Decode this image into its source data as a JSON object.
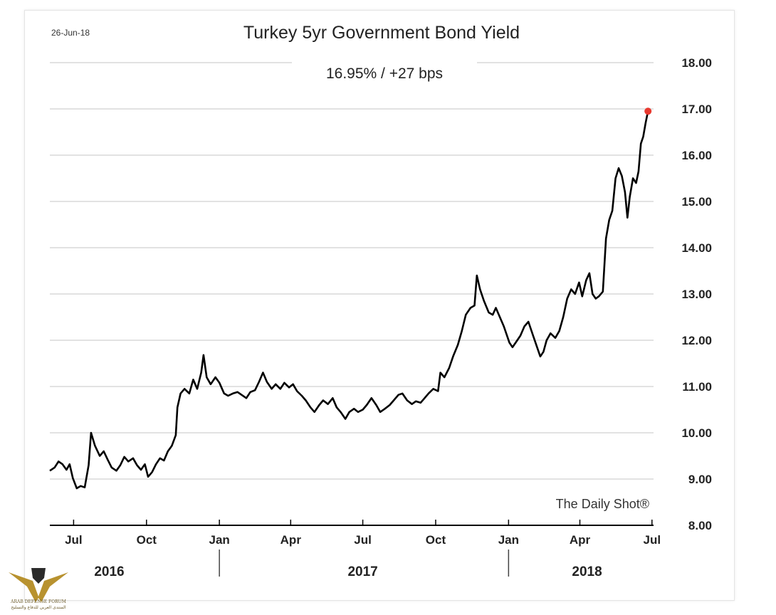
{
  "chart_data": {
    "type": "line",
    "date_label": "26-Jun-18",
    "title": "Turkey 5yr Government Bond Yield",
    "subtitle": "16.95%  /  +27 bps",
    "source": "The Daily Shot®",
    "ylim": [
      8,
      18
    ],
    "yticks": [
      "18.00",
      "17.00",
      "16.00",
      "15.00",
      "14.00",
      "13.00",
      "12.00",
      "11.00",
      "10.00",
      "9.00",
      "8.00"
    ],
    "xticks": [
      {
        "label": "Jul",
        "date": "2016-07-01"
      },
      {
        "label": "Oct",
        "date": "2016-10-01"
      },
      {
        "label": "Jan",
        "date": "2017-01-01"
      },
      {
        "label": "Apr",
        "date": "2017-04-01"
      },
      {
        "label": "Jul",
        "date": "2017-07-01"
      },
      {
        "label": "Oct",
        "date": "2017-10-01"
      },
      {
        "label": "Jan",
        "date": "2018-01-01"
      },
      {
        "label": "Apr",
        "date": "2018-04-01"
      },
      {
        "label": "Jul",
        "date": "2018-07-01"
      }
    ],
    "years": [
      {
        "label": "2016",
        "date": "2016-08-15"
      },
      {
        "label": "2017",
        "date": "2017-07-01"
      },
      {
        "label": "2018",
        "date": "2018-04-10"
      }
    ],
    "year_dividers": [
      "2017-01-01",
      "2018-01-01"
    ],
    "grid": true,
    "last_point": {
      "date": "2018-06-26",
      "value": 16.95,
      "color": "#e8392f"
    },
    "line_color": "#000000",
    "series": [
      {
        "values": [
          [
            "2016-06-01",
            9.18
          ],
          [
            "2016-06-07",
            9.25
          ],
          [
            "2016-06-12",
            9.38
          ],
          [
            "2016-06-17",
            9.32
          ],
          [
            "2016-06-22",
            9.2
          ],
          [
            "2016-06-26",
            9.32
          ],
          [
            "2016-06-30",
            9.02
          ],
          [
            "2016-07-05",
            8.8
          ],
          [
            "2016-07-10",
            8.85
          ],
          [
            "2016-07-15",
            8.82
          ],
          [
            "2016-07-20",
            9.3
          ],
          [
            "2016-07-23",
            10.0
          ],
          [
            "2016-07-28",
            9.72
          ],
          [
            "2016-08-03",
            9.5
          ],
          [
            "2016-08-08",
            9.6
          ],
          [
            "2016-08-13",
            9.42
          ],
          [
            "2016-08-18",
            9.25
          ],
          [
            "2016-08-24",
            9.18
          ],
          [
            "2016-08-29",
            9.3
          ],
          [
            "2016-09-03",
            9.48
          ],
          [
            "2016-09-08",
            9.38
          ],
          [
            "2016-09-14",
            9.45
          ],
          [
            "2016-09-19",
            9.3
          ],
          [
            "2016-09-24",
            9.2
          ],
          [
            "2016-09-29",
            9.32
          ],
          [
            "2016-10-03",
            9.05
          ],
          [
            "2016-10-08",
            9.15
          ],
          [
            "2016-10-13",
            9.32
          ],
          [
            "2016-10-18",
            9.45
          ],
          [
            "2016-10-23",
            9.4
          ],
          [
            "2016-10-28",
            9.6
          ],
          [
            "2016-11-02",
            9.72
          ],
          [
            "2016-11-07",
            9.95
          ],
          [
            "2016-11-09",
            10.55
          ],
          [
            "2016-11-13",
            10.85
          ],
          [
            "2016-11-18",
            10.95
          ],
          [
            "2016-11-24",
            10.85
          ],
          [
            "2016-11-29",
            11.15
          ],
          [
            "2016-12-04",
            10.95
          ],
          [
            "2016-12-09",
            11.3
          ],
          [
            "2016-12-12",
            11.68
          ],
          [
            "2016-12-16",
            11.2
          ],
          [
            "2016-12-21",
            11.05
          ],
          [
            "2016-12-27",
            11.2
          ],
          [
            "2017-01-01",
            11.08
          ],
          [
            "2017-01-07",
            10.85
          ],
          [
            "2017-01-12",
            10.8
          ],
          [
            "2017-01-18",
            10.85
          ],
          [
            "2017-01-24",
            10.88
          ],
          [
            "2017-01-29",
            10.82
          ],
          [
            "2017-02-04",
            10.75
          ],
          [
            "2017-02-09",
            10.88
          ],
          [
            "2017-02-15",
            10.92
          ],
          [
            "2017-02-20",
            11.1
          ],
          [
            "2017-02-25",
            11.3
          ],
          [
            "2017-03-02",
            11.1
          ],
          [
            "2017-03-08",
            10.95
          ],
          [
            "2017-03-13",
            11.05
          ],
          [
            "2017-03-19",
            10.95
          ],
          [
            "2017-03-24",
            11.08
          ],
          [
            "2017-03-30",
            10.98
          ],
          [
            "2017-04-04",
            11.05
          ],
          [
            "2017-04-09",
            10.9
          ],
          [
            "2017-04-15",
            10.8
          ],
          [
            "2017-04-20",
            10.7
          ],
          [
            "2017-04-26",
            10.55
          ],
          [
            "2017-05-01",
            10.45
          ],
          [
            "2017-05-07",
            10.6
          ],
          [
            "2017-05-12",
            10.7
          ],
          [
            "2017-05-18",
            10.62
          ],
          [
            "2017-05-24",
            10.75
          ],
          [
            "2017-05-29",
            10.55
          ],
          [
            "2017-06-03",
            10.45
          ],
          [
            "2017-06-09",
            10.3
          ],
          [
            "2017-06-14",
            10.45
          ],
          [
            "2017-06-20",
            10.52
          ],
          [
            "2017-06-25",
            10.45
          ],
          [
            "2017-07-01",
            10.5
          ],
          [
            "2017-07-06",
            10.6
          ],
          [
            "2017-07-12",
            10.75
          ],
          [
            "2017-07-18",
            10.6
          ],
          [
            "2017-07-23",
            10.45
          ],
          [
            "2017-07-29",
            10.52
          ],
          [
            "2017-08-04",
            10.6
          ],
          [
            "2017-08-09",
            10.7
          ],
          [
            "2017-08-15",
            10.82
          ],
          [
            "2017-08-20",
            10.85
          ],
          [
            "2017-08-26",
            10.7
          ],
          [
            "2017-09-01",
            10.62
          ],
          [
            "2017-09-06",
            10.68
          ],
          [
            "2017-09-12",
            10.65
          ],
          [
            "2017-09-17",
            10.75
          ],
          [
            "2017-09-22",
            10.85
          ],
          [
            "2017-09-28",
            10.95
          ],
          [
            "2017-10-04",
            10.9
          ],
          [
            "2017-10-07",
            11.3
          ],
          [
            "2017-10-12",
            11.2
          ],
          [
            "2017-10-18",
            11.4
          ],
          [
            "2017-10-23",
            11.65
          ],
          [
            "2017-10-29",
            11.9
          ],
          [
            "2017-11-03",
            12.2
          ],
          [
            "2017-11-08",
            12.55
          ],
          [
            "2017-11-14",
            12.7
          ],
          [
            "2017-11-19",
            12.75
          ],
          [
            "2017-11-22",
            13.4
          ],
          [
            "2017-11-26",
            13.1
          ],
          [
            "2017-12-01",
            12.85
          ],
          [
            "2017-12-07",
            12.6
          ],
          [
            "2017-12-12",
            12.55
          ],
          [
            "2017-12-16",
            12.7
          ],
          [
            "2017-12-21",
            12.5
          ],
          [
            "2017-12-26",
            12.3
          ],
          [
            "2018-01-02",
            11.95
          ],
          [
            "2018-01-06",
            11.85
          ],
          [
            "2018-01-10",
            11.95
          ],
          [
            "2018-01-16",
            12.1
          ],
          [
            "2018-01-21",
            12.3
          ],
          [
            "2018-01-26",
            12.4
          ],
          [
            "2018-02-01",
            12.1
          ],
          [
            "2018-02-06",
            11.85
          ],
          [
            "2018-02-10",
            11.65
          ],
          [
            "2018-02-14",
            11.75
          ],
          [
            "2018-02-18",
            12.0
          ],
          [
            "2018-02-23",
            12.15
          ],
          [
            "2018-03-01",
            12.05
          ],
          [
            "2018-03-06",
            12.2
          ],
          [
            "2018-03-11",
            12.5
          ],
          [
            "2018-03-16",
            12.9
          ],
          [
            "2018-03-21",
            13.1
          ],
          [
            "2018-03-26",
            13.0
          ],
          [
            "2018-03-31",
            13.25
          ],
          [
            "2018-04-04",
            12.95
          ],
          [
            "2018-04-09",
            13.3
          ],
          [
            "2018-04-13",
            13.45
          ],
          [
            "2018-04-17",
            13.0
          ],
          [
            "2018-04-21",
            12.9
          ],
          [
            "2018-04-25",
            12.95
          ],
          [
            "2018-04-30",
            13.05
          ],
          [
            "2018-05-04",
            14.2
          ],
          [
            "2018-05-08",
            14.6
          ],
          [
            "2018-05-12",
            14.8
          ],
          [
            "2018-05-16",
            15.5
          ],
          [
            "2018-05-20",
            15.72
          ],
          [
            "2018-05-24",
            15.55
          ],
          [
            "2018-05-28",
            15.2
          ],
          [
            "2018-05-31",
            14.65
          ],
          [
            "2018-06-03",
            15.1
          ],
          [
            "2018-06-07",
            15.5
          ],
          [
            "2018-06-11",
            15.4
          ],
          [
            "2018-06-14",
            15.65
          ],
          [
            "2018-06-17",
            16.25
          ],
          [
            "2018-06-20",
            16.4
          ],
          [
            "2018-06-23",
            16.7
          ],
          [
            "2018-06-26",
            16.95
          ]
        ]
      }
    ]
  },
  "watermark": {
    "text": "ARAB DEFENSE FORUM",
    "subtext": "المنتدى العربي للدفاع والتسليح"
  }
}
